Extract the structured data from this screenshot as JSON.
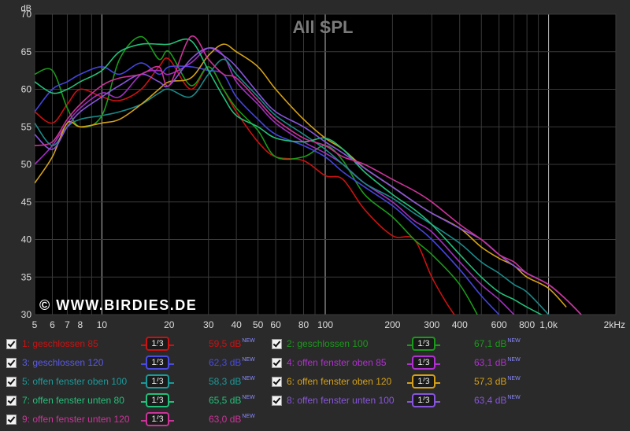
{
  "chart_data": {
    "type": "line",
    "title": "All SPL",
    "ylabel": "dB",
    "xlabel": "",
    "x_scale": "log",
    "xlim": [
      5,
      2000
    ],
    "ylim": [
      30,
      70
    ],
    "grid": true,
    "y_ticks": [
      "30",
      "35",
      "40",
      "45",
      "50",
      "55",
      "60",
      "65",
      "70"
    ],
    "x_ticks": [
      {
        "v": 5,
        "label": "5"
      },
      {
        "v": 6,
        "label": "6"
      },
      {
        "v": 7,
        "label": "7"
      },
      {
        "v": 8,
        "label": "8"
      },
      {
        "v": 10,
        "label": "10"
      },
      {
        "v": 20,
        "label": "20"
      },
      {
        "v": 30,
        "label": "30"
      },
      {
        "v": 40,
        "label": "40"
      },
      {
        "v": 50,
        "label": "50"
      },
      {
        "v": 60,
        "label": "60"
      },
      {
        "v": 80,
        "label": "80"
      },
      {
        "v": 100,
        "label": "100"
      },
      {
        "v": 200,
        "label": "200"
      },
      {
        "v": 300,
        "label": "300"
      },
      {
        "v": 400,
        "label": "400"
      },
      {
        "v": 600,
        "label": "600"
      },
      {
        "v": 800,
        "label": "800"
      },
      {
        "v": 1000,
        "label": "1,0k"
      },
      {
        "v": 2000,
        "label": "2kHz"
      }
    ],
    "watermark": "© WWW.BIRDIES.DE",
    "series": [
      {
        "name": "1: geschlossen 85",
        "color": "#cc1111",
        "x": [
          5,
          6,
          7,
          8,
          10,
          12,
          15,
          18,
          20,
          25,
          30,
          35,
          40,
          50,
          60,
          80,
          100,
          120,
          150,
          200,
          250,
          300,
          350,
          400
        ],
        "y": [
          57,
          55.5,
          58,
          60,
          59,
          58.5,
          60,
          63,
          64,
          60,
          63,
          60,
          57,
          53,
          51,
          50.5,
          48.5,
          48,
          44,
          40.5,
          40,
          35,
          31.5,
          29
        ]
      },
      {
        "name": "2: geschlossen 100",
        "color": "#1a9a1a",
        "x": [
          5,
          6,
          7,
          8,
          10,
          12,
          15,
          18,
          20,
          25,
          30,
          35,
          40,
          50,
          60,
          80,
          100,
          120,
          150,
          200,
          250,
          300,
          400,
          500
        ],
        "y": [
          62,
          62.5,
          57.5,
          55,
          56.5,
          64,
          67,
          64,
          65,
          60.5,
          63,
          60,
          57.5,
          54.5,
          51,
          51,
          52.5,
          50.5,
          46,
          43,
          40,
          38,
          34,
          29
        ]
      },
      {
        "name": "3: geschlossen 120",
        "color": "#4444dd",
        "x": [
          5,
          6,
          7,
          8,
          10,
          12,
          15,
          18,
          20,
          25,
          30,
          35,
          40,
          50,
          60,
          80,
          100,
          120,
          150,
          200,
          250,
          300,
          400,
          500,
          600
        ],
        "y": [
          57,
          60,
          61,
          62,
          63,
          62,
          63.5,
          62,
          63,
          63,
          62.5,
          62,
          59,
          56,
          54,
          52.5,
          51,
          49,
          47,
          44.5,
          42,
          40,
          36,
          32.5,
          30
        ]
      },
      {
        "name": "4: offen fenster oben 85",
        "color": "#a030c0",
        "x": [
          5,
          6,
          7,
          8,
          10,
          12,
          15,
          18,
          20,
          25,
          30,
          35,
          40,
          50,
          60,
          80,
          100,
          120,
          150,
          200,
          250,
          300,
          400,
          500,
          600,
          700
        ],
        "y": [
          50,
          52.5,
          55.5,
          57.5,
          59.5,
          59,
          62,
          62.5,
          62,
          63.5,
          65.5,
          64.5,
          61,
          58,
          55.5,
          53,
          51.5,
          50,
          47.5,
          45,
          42.5,
          41,
          37,
          34,
          32,
          30
        ]
      },
      {
        "name": "5: offen fenster oben 100",
        "color": "#1a8a8a",
        "x": [
          5,
          6,
          7,
          8,
          10,
          12,
          15,
          18,
          20,
          25,
          30,
          35,
          40,
          50,
          60,
          80,
          100,
          120,
          150,
          200,
          250,
          300,
          400,
          500,
          600,
          700,
          800,
          1000
        ],
        "y": [
          55.5,
          52.5,
          55,
          56,
          56.5,
          57,
          58,
          59.5,
          60,
          59,
          62,
          64,
          62,
          59,
          56.5,
          54,
          52,
          50,
          47.5,
          45.5,
          43.5,
          42,
          39.5,
          37,
          35.5,
          34,
          33,
          30
        ]
      },
      {
        "name": "6: offen fenster oben 120",
        "color": "#d4a017",
        "x": [
          5,
          6,
          7,
          8,
          10,
          12,
          15,
          18,
          20,
          25,
          30,
          35,
          40,
          50,
          60,
          80,
          100,
          120,
          150,
          200,
          250,
          300,
          400,
          500,
          600,
          700,
          800,
          1000,
          1200
        ],
        "y": [
          47.5,
          51,
          55.5,
          55,
          55.5,
          56,
          58,
          60,
          61,
          61.5,
          64.5,
          66,
          65,
          63,
          60,
          56,
          53.5,
          52,
          49.5,
          47,
          45,
          43.5,
          41.5,
          39,
          37.5,
          36.5,
          35,
          33.5,
          31
        ]
      },
      {
        "name": "7: offen fenster unten 80",
        "color": "#22c07a",
        "x": [
          5,
          6,
          7,
          8,
          10,
          12,
          15,
          18,
          20,
          25,
          30,
          35,
          40,
          50,
          60,
          80,
          100,
          120,
          150,
          200,
          250,
          300,
          400,
          500,
          600,
          700,
          800,
          1000
        ],
        "y": [
          61,
          59.5,
          60,
          61,
          62.5,
          65,
          66,
          66,
          66,
          66.5,
          62.5,
          59,
          56.5,
          55,
          53.5,
          53,
          53.5,
          52,
          49,
          46,
          44,
          42,
          38,
          35,
          33,
          32,
          31,
          29.5
        ]
      },
      {
        "name": "8: offen fenster unten 100",
        "color": "#8855dd",
        "x": [
          5,
          6,
          7,
          8,
          10,
          12,
          15,
          18,
          20,
          25,
          30,
          35,
          40,
          50,
          60,
          80,
          100,
          120,
          150,
          200,
          250,
          300,
          400,
          500,
          600,
          700,
          800,
          1000,
          1200,
          1400
        ],
        "y": [
          54,
          52,
          55,
          57,
          59,
          60.5,
          62,
          61,
          60.5,
          64,
          65.5,
          64.5,
          63,
          59.5,
          57,
          55,
          53,
          51.5,
          49.5,
          47,
          45,
          43.5,
          41.5,
          40,
          38,
          36.5,
          35.5,
          34,
          32,
          30
        ]
      },
      {
        "name": "9: offen fenster unten 120",
        "color": "#cc3399",
        "x": [
          5,
          6,
          7,
          8,
          10,
          12,
          15,
          18,
          20,
          25,
          30,
          35,
          40,
          50,
          60,
          80,
          100,
          120,
          150,
          200,
          250,
          300,
          400,
          500,
          600,
          700,
          800,
          1000,
          1200,
          1400
        ],
        "y": [
          52.5,
          53,
          56,
          58,
          60.5,
          61.5,
          62,
          63,
          60.5,
          67,
          64,
          62,
          61.5,
          58.5,
          56,
          53.5,
          52.5,
          51,
          50,
          48,
          46.5,
          45,
          42,
          40,
          38,
          37,
          35.5,
          34,
          32,
          30
        ]
      }
    ]
  },
  "legend": [
    {
      "label": "1: geschlossen 85",
      "smoothing": "1/3",
      "level": "59,5 dB",
      "badge": "NEW",
      "color": "#cc1111",
      "label_color": "#cc1111",
      "smooth_color": "#cc1111"
    },
    {
      "label": "2: geschlossen 100",
      "smoothing": "1/3",
      "level": "67,1 dB",
      "badge": "NEW",
      "color": "#1a9a1a",
      "label_color": "#1a9a1a",
      "smooth_color": "#1a9a1a"
    },
    {
      "label": "3: geschlossen 120",
      "smoothing": "1/3",
      "level": "62,3 dB",
      "badge": "NEW",
      "color": "#4a4ae0",
      "label_color": "#5a5ae8",
      "smooth_color": "#4a4ae0"
    },
    {
      "label": "4: offen fenster oben 85",
      "smoothing": "1/3",
      "level": "63,1 dB",
      "badge": "NEW",
      "color": "#b030d0",
      "label_color": "#b030d0",
      "smooth_color": "#b030d0"
    },
    {
      "label": "5: offen fenster oben 100",
      "smoothing": "1/3",
      "level": "58,3 dB",
      "badge": "NEW",
      "color": "#1a9a9a",
      "label_color": "#1a9a9a",
      "smooth_color": "#1a9a9a"
    },
    {
      "label": "6: offen fenster oben 120",
      "smoothing": "1/3",
      "level": "57,3 dB",
      "badge": "NEW",
      "color": "#d4a017",
      "label_color": "#d4a017",
      "smooth_color": "#d4a017"
    },
    {
      "label": "7: offen fenster unten 80",
      "smoothing": "1/3",
      "level": "65,5 dB",
      "badge": "NEW",
      "color": "#22c07a",
      "label_color": "#22c07a",
      "smooth_color": "#22c07a"
    },
    {
      "label": "8: offen fenster unten 100",
      "smoothing": "1/3",
      "level": "63,4 dB",
      "badge": "NEW",
      "color": "#8855dd",
      "label_color": "#8855dd",
      "smooth_color": "#8855dd"
    },
    {
      "label": "9: offen fenster unten 120",
      "smoothing": "1/3",
      "level": "63,0 dB",
      "badge": "NEW",
      "color": "#cc3399",
      "label_color": "#cc3399",
      "smooth_color": "#cc3399"
    }
  ]
}
